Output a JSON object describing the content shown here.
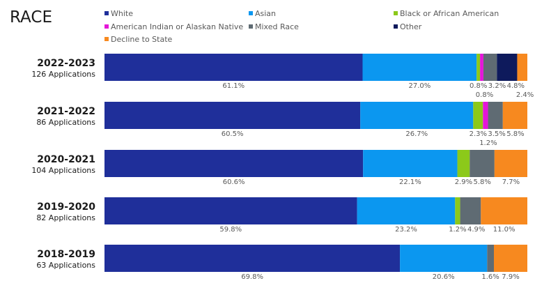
{
  "chart_data": {
    "type": "bar",
    "orientation": "horizontal-stacked-100",
    "title": "RACE",
    "legend_position": "top",
    "grid": false,
    "series_legend": [
      {
        "name": "White",
        "color": "#1f2f9a"
      },
      {
        "name": "Asian",
        "color": "#0b97f0"
      },
      {
        "name": "Black or African American",
        "color": "#8cc91a"
      },
      {
        "name": "American Indian or Alaskan Native",
        "color": "#e416d8"
      },
      {
        "name": "Mixed Race",
        "color": "#5f6b73"
      },
      {
        "name": "Other",
        "color": "#0e1a5c"
      },
      {
        "name": "Decline to State",
        "color": "#f7891f"
      }
    ],
    "rows": [
      {
        "year": "2022-2023",
        "applications": "126 Applications",
        "values": [
          61.1,
          27.0,
          0.8,
          0.8,
          3.2,
          4.8,
          2.4
        ],
        "labels": [
          "61.1%",
          "27.0%",
          "0.8%",
          "0.8%",
          "3.2%",
          "4.8%",
          "2.4%"
        ]
      },
      {
        "year": "2021-2022",
        "applications": "86 Applications",
        "values": [
          60.5,
          26.7,
          2.3,
          1.2,
          3.5,
          0,
          5.8
        ],
        "labels": [
          "60.5%",
          "26.7%",
          "2.3%",
          "1.2%",
          "3.5%",
          "",
          "5.8%"
        ]
      },
      {
        "year": "2020-2021",
        "applications": "104 Applications",
        "values": [
          60.6,
          22.1,
          2.9,
          0,
          5.8,
          0,
          7.7
        ],
        "labels": [
          "60.6%",
          "22.1%",
          "2.9%",
          "",
          "5.8%",
          "",
          "7.7%"
        ]
      },
      {
        "year": "2019-2020",
        "applications": "82 Applications",
        "values": [
          59.8,
          23.2,
          1.2,
          0,
          4.9,
          0,
          11.0
        ],
        "labels": [
          "59.8%",
          "23.2%",
          "1.2%",
          "",
          "4.9%",
          "",
          "11.0%"
        ]
      },
      {
        "year": "2018-2019",
        "applications": "63 Applications",
        "values": [
          69.8,
          20.6,
          0,
          0,
          1.6,
          0,
          7.9
        ],
        "labels": [
          "69.8%",
          "20.6%",
          "",
          "",
          "1.6%",
          "",
          "7.9%"
        ]
      }
    ]
  }
}
